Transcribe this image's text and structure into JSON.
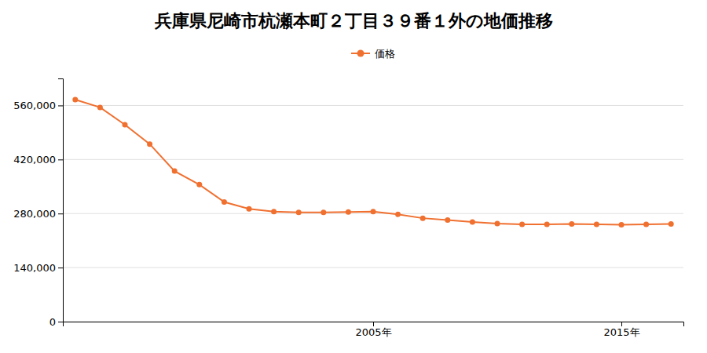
{
  "chart_data": {
    "type": "line",
    "title": "兵庫県尼崎市杭瀬本町２丁目３９番１外の地価推移",
    "x": [
      1993,
      1994,
      1995,
      1996,
      1997,
      1998,
      1999,
      2000,
      2001,
      2002,
      2003,
      2004,
      2005,
      2006,
      2007,
      2008,
      2009,
      2010,
      2011,
      2012,
      2013,
      2014,
      2015,
      2016,
      2017
    ],
    "series": [
      {
        "name": "価格",
        "color": "#f07030",
        "marker": "circle",
        "values": [
          575000,
          555000,
          510000,
          460000,
          390000,
          355000,
          310000,
          292000,
          285000,
          283000,
          283000,
          284000,
          285000,
          278000,
          268000,
          263000,
          258000,
          254000,
          252000,
          252000,
          253000,
          252000,
          251000,
          252000,
          253000
        ]
      }
    ],
    "xlim": [
      1992.5,
      2017.5
    ],
    "xticks": [
      {
        "value": 2005,
        "label": "2005年"
      },
      {
        "value": 2015,
        "label": "2015年"
      }
    ],
    "ylim": [
      0,
      630000
    ],
    "yticks": [
      0,
      {
        "value": 140000,
        "label": "140,000"
      },
      {
        "value": 280000,
        "label": "280,000"
      },
      {
        "value": 420000,
        "label": "420,000"
      },
      {
        "value": 560000,
        "label": "560,000"
      }
    ],
    "grid": true,
    "legend": "top"
  }
}
